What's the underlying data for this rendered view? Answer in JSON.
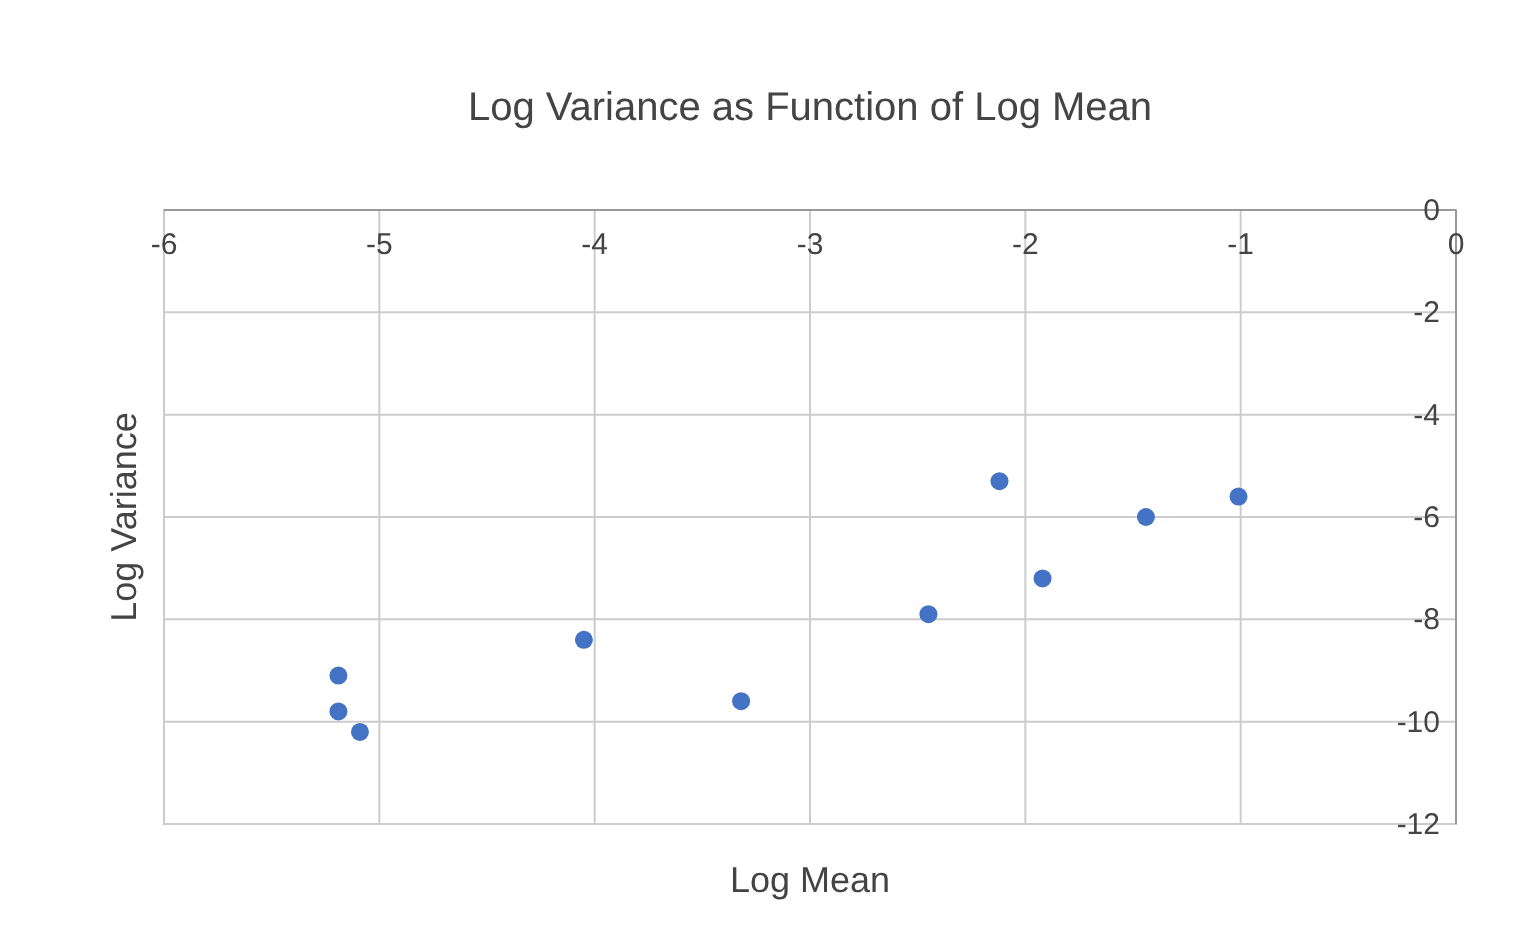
{
  "chart_data": {
    "type": "scatter",
    "title": "Log Variance as Function of Log Mean",
    "xlabel": "Log Mean",
    "ylabel": "Log Variance",
    "x": [
      -5.19,
      -5.19,
      -5.09,
      -4.05,
      -3.32,
      -2.45,
      -2.12,
      -1.92,
      -1.44,
      -1.01
    ],
    "values": [
      -9.1,
      -9.8,
      -10.2,
      -8.4,
      -9.6,
      -7.9,
      -5.3,
      -7.2,
      -6.0,
      -5.6
    ],
    "color": "#4472c4",
    "marker": "circle",
    "xlim": [
      -6,
      0
    ],
    "xticks": [
      -6,
      -5,
      -4,
      -3,
      -2,
      -1,
      0
    ],
    "ylim": [
      -12,
      0
    ],
    "yticks": [
      -12,
      -10,
      -8,
      -6,
      -4,
      -2,
      0
    ],
    "grid": true
  }
}
